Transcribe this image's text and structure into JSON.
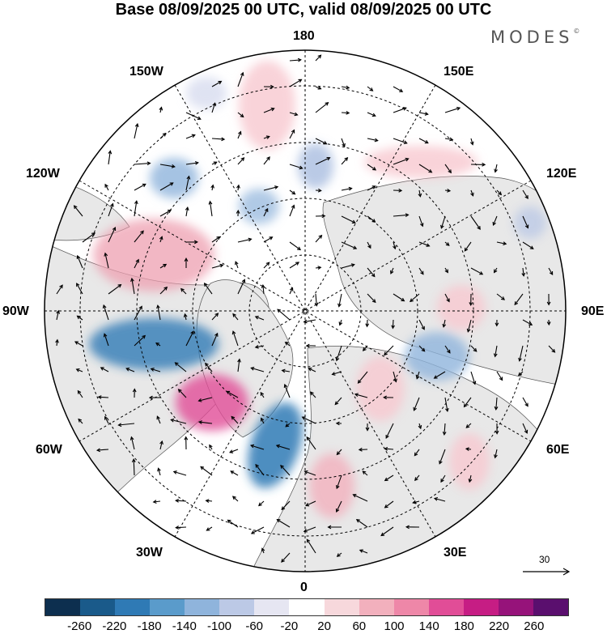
{
  "title": "Base 08/09/2025 00 UTC, valid 08/09/2025 00 UTC",
  "logo": "MODES",
  "logo_mark": "©",
  "longitude_labels": {
    "lon_180": "180",
    "lon_150E": "150E",
    "lon_120E": "120E",
    "lon_90E": "90E",
    "lon_60E": "60E",
    "lon_30E": "30E",
    "lon_0": "0",
    "lon_30W": "30W",
    "lon_60W": "60W",
    "lon_90W": "90W",
    "lon_120W": "120W",
    "lon_150W": "150W"
  },
  "reference_vector": "30",
  "colorbar": {
    "colors": [
      "#0d2f4f",
      "#1a5a8a",
      "#2f7ab5",
      "#5a9bcb",
      "#8fb4dc",
      "#bcc9e6",
      "#e6e6f2",
      "#ffffff",
      "#f7d8dc",
      "#f2b0bd",
      "#ee87a8",
      "#e14d97",
      "#c61d84",
      "#96137a",
      "#5a0f6e"
    ],
    "ticks": [
      "-260",
      "-220",
      "-180",
      "-140",
      "-100",
      "-60",
      "-20",
      "20",
      "60",
      "100",
      "140",
      "180",
      "220",
      "260"
    ]
  }
}
